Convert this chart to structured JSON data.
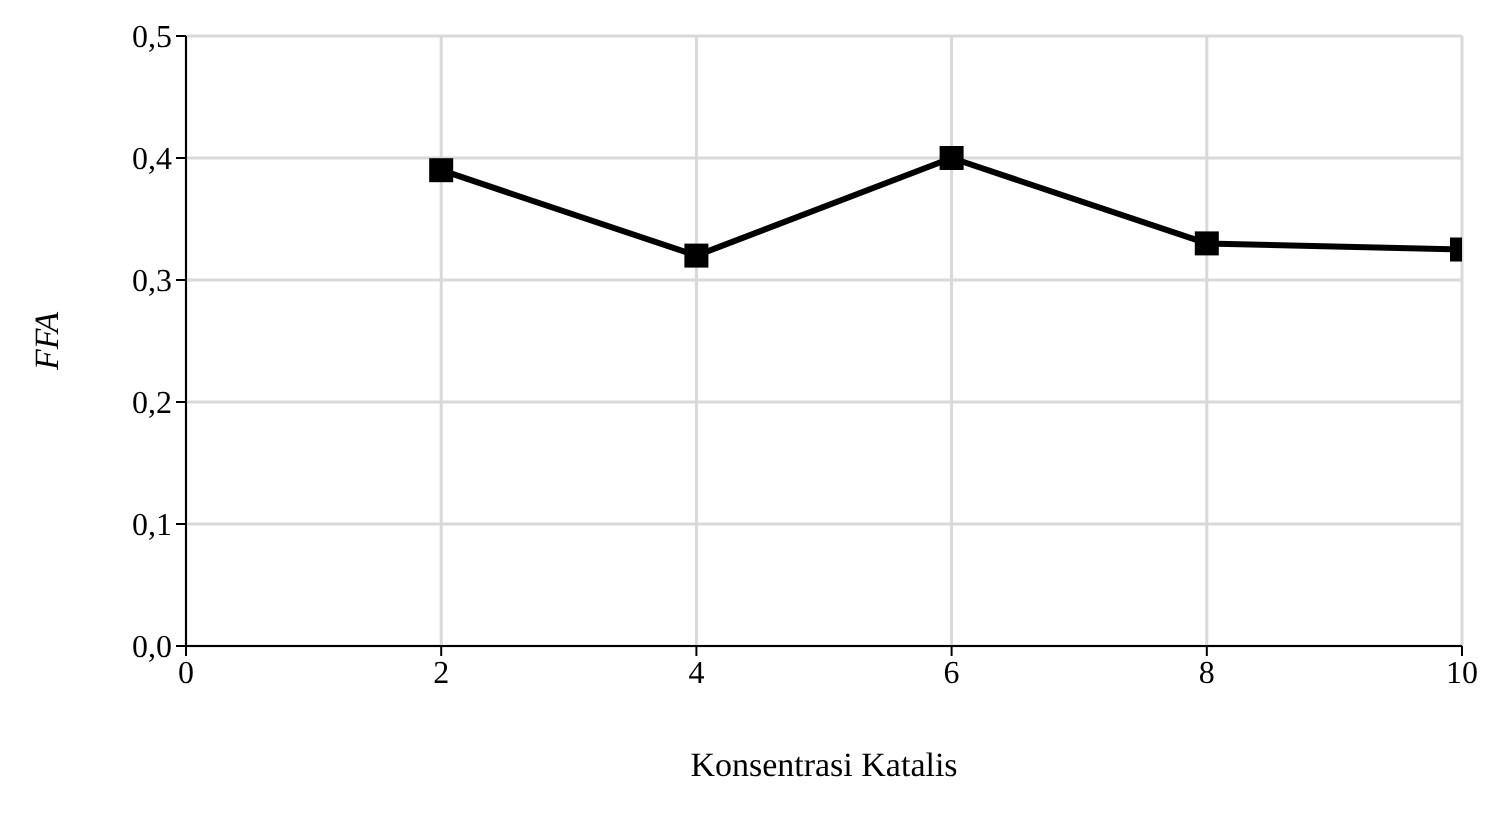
{
  "chart_data": {
    "type": "line",
    "xlabel": "Konsentrasi Katalis",
    "ylabel": "FFA",
    "x": [
      2,
      4,
      6,
      8,
      10
    ],
    "series": [
      {
        "color": "#000000",
        "values": [
          0.39,
          0.32,
          0.4,
          0.33,
          0.325
        ]
      }
    ],
    "xlim": [
      0,
      10
    ],
    "xticks": [
      0,
      2,
      4,
      6,
      8,
      10
    ],
    "ylim": [
      0,
      0.5
    ],
    "yticks": [
      {
        "value": 0,
        "label": "0,0"
      },
      {
        "value": 0.1,
        "label": "0,1"
      },
      {
        "value": 0.2,
        "label": "0,2"
      },
      {
        "value": 0.3,
        "label": "0,3"
      },
      {
        "value": 0.4,
        "label": "0,4"
      },
      {
        "value": 0.5,
        "label": "0,5"
      }
    ],
    "grid": true,
    "marker": "square",
    "line_style": "solid"
  }
}
